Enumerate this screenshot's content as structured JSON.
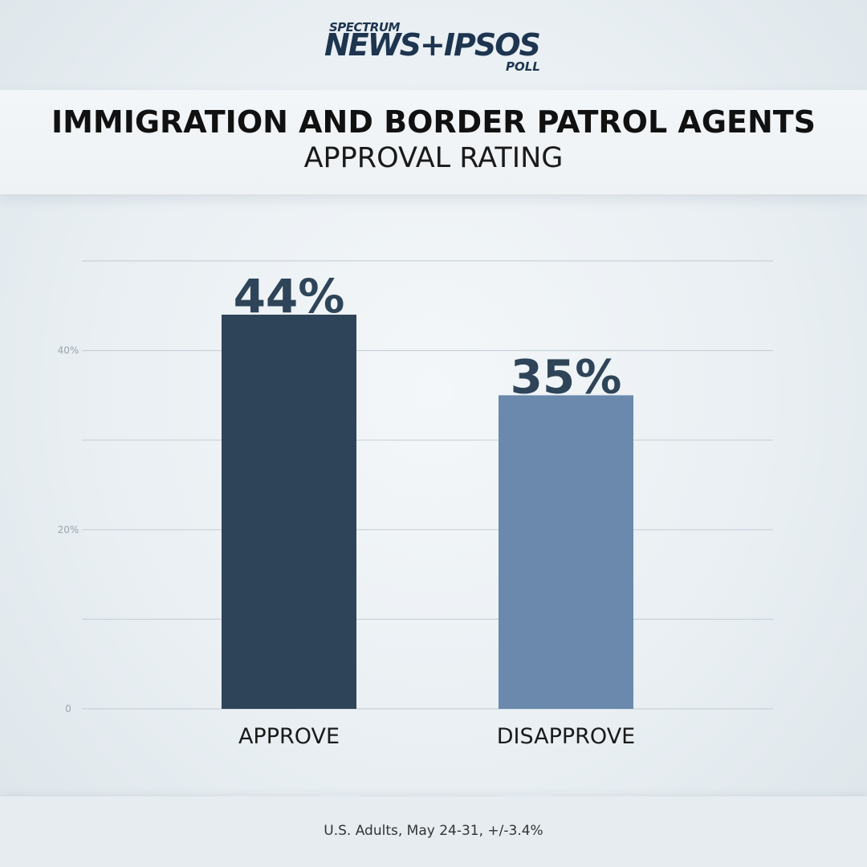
{
  "logo": {
    "top": "SPECTRUM",
    "main": "NEWS+IPSOS",
    "sub": "POLL"
  },
  "footer": "U.S. Adults, May 24-31, +/-3.4%",
  "chart_data": {
    "type": "bar",
    "title": "IMMIGRATION AND BORDER PATROL AGENTS",
    "subtitle": "APPROVAL RATING",
    "categories": [
      "APPROVE",
      "DISAPPROVE"
    ],
    "values": [
      44,
      35
    ],
    "data_labels": [
      "44%",
      "35%"
    ],
    "bar_colors": [
      "#2e4459",
      "#6a89ad"
    ],
    "ylim": [
      0,
      50
    ],
    "yticks": [
      0,
      10,
      20,
      30,
      40,
      50
    ],
    "ytick_labels": [
      "0",
      "",
      "20%",
      "",
      "40%",
      ""
    ],
    "grid": true,
    "legend": "none"
  }
}
